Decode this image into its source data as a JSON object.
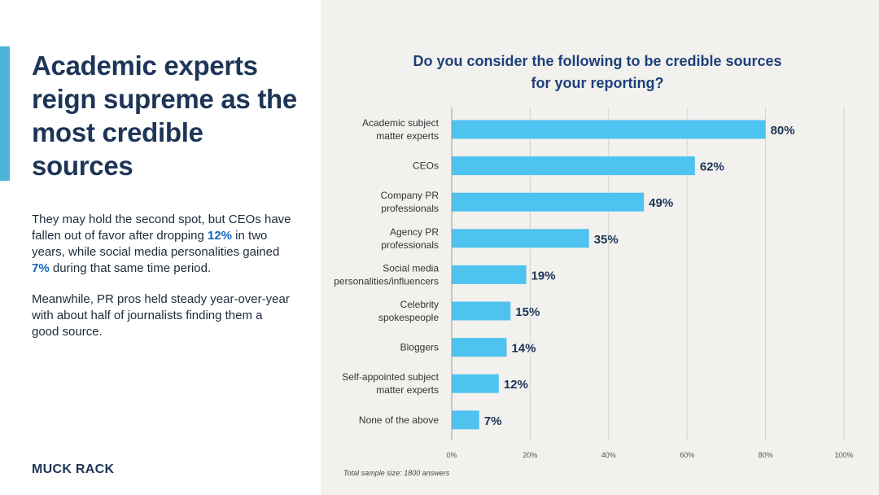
{
  "left": {
    "headline": "Academic experts reign supreme as the most credible sources",
    "paragraph1": {
      "part1": "They may hold the second spot, but CEOs have fallen out of favor after dropping ",
      "highlight1": "12%",
      "part2": " in two years, while social media personalities gained ",
      "highlight2": "7%",
      "part3": " during that same time period."
    },
    "paragraph2": "Meanwhile, PR pros held steady year-over-year with about half of journalists finding them a good source.",
    "logo": "MUCK RACK"
  },
  "colors": {
    "bar": "#4fc3f0",
    "accent": "#4fb3dc",
    "title": "#1d3f7a",
    "headline": "#1d3557",
    "highlight": "#1565c0"
  },
  "chart_data": {
    "type": "bar",
    "orientation": "horizontal",
    "title": "Do you consider the following to be credible sources for your reporting?",
    "categories": [
      [
        "Academic subject",
        "matter experts"
      ],
      [
        "CEOs"
      ],
      [
        "Company PR",
        "professionals"
      ],
      [
        "Agency PR",
        "professionals"
      ],
      [
        "Social media",
        "personalities/influencers"
      ],
      [
        "Celebrity",
        "spokespeople"
      ],
      [
        "Bloggers"
      ],
      [
        "Self-appointed subject",
        "matter experts"
      ],
      [
        "None of the above"
      ]
    ],
    "values": [
      80,
      62,
      49,
      35,
      19,
      15,
      14,
      12,
      7
    ],
    "value_labels": [
      "80%",
      "62%",
      "49%",
      "35%",
      "19%",
      "15%",
      "14%",
      "12%",
      "7%"
    ],
    "xlim": [
      0,
      100
    ],
    "xticks": [
      0,
      20,
      40,
      60,
      80,
      100
    ],
    "xtick_labels": [
      "0%",
      "20%",
      "40%",
      "60%",
      "80%",
      "100%"
    ],
    "grid": true,
    "footnote": "Total sample size: 1800 answers"
  }
}
